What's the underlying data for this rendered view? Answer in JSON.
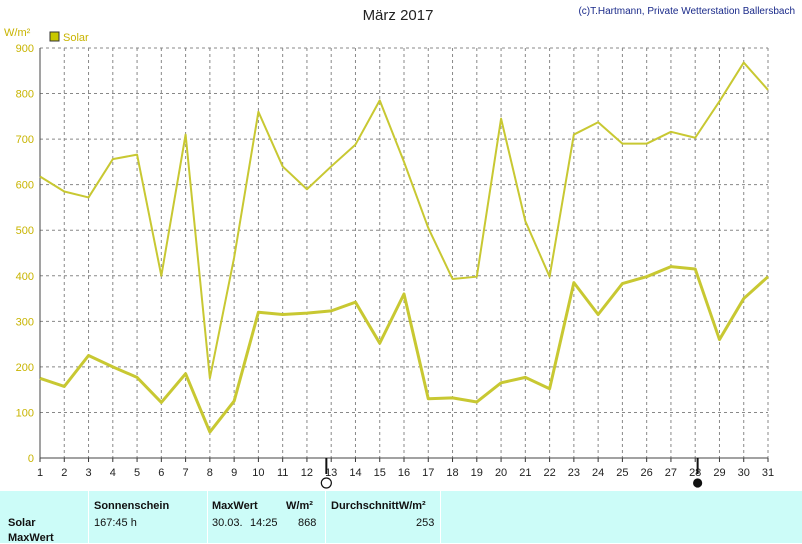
{
  "header": {
    "title": "März 2017",
    "credit": "(c)T.Hartmann, Private Wetterstation Ballersbach",
    "unit": "W/m²"
  },
  "legend": {
    "label": "Solar",
    "color": "#c8c800"
  },
  "colors": {
    "line": "#c8c832",
    "grid": "#888888",
    "panel": "#ccfcf8",
    "credit": "#1a2a8a",
    "ytick": "#c8b400"
  },
  "chart_data": {
    "type": "line",
    "title": "März 2017",
    "xlabel": "",
    "ylabel": "W/m²",
    "x": [
      1,
      2,
      3,
      4,
      5,
      6,
      7,
      8,
      9,
      10,
      11,
      12,
      13,
      14,
      15,
      16,
      17,
      18,
      19,
      20,
      21,
      22,
      23,
      24,
      25,
      26,
      27,
      28,
      29,
      30,
      31
    ],
    "xlim": [
      1,
      31
    ],
    "ylim": [
      0,
      900
    ],
    "yticks": [
      0,
      100,
      200,
      300,
      400,
      500,
      600,
      700,
      800,
      900
    ],
    "grid": true,
    "legend_position": "top-left",
    "series": [
      {
        "name": "Solar",
        "values": [
          618,
          585,
          572,
          656,
          666,
          400,
          710,
          175,
          440,
          760,
          640,
          590,
          640,
          688,
          785,
          650,
          505,
          393,
          398,
          745,
          520,
          398,
          710,
          737,
          690,
          690,
          716,
          703,
          783,
          868,
          808
        ]
      },
      {
        "name": "",
        "values": [
          175,
          157,
          225,
          200,
          177,
          122,
          185,
          57,
          125,
          320,
          315,
          318,
          323,
          342,
          252,
          360,
          130,
          132,
          123,
          165,
          177,
          152,
          385,
          315,
          383,
          398,
          420,
          415,
          260,
          350,
          398
        ]
      }
    ],
    "markers": [
      {
        "type": "full-moon",
        "x": 12.8
      },
      {
        "type": "new-moon",
        "x": 28.1
      }
    ]
  },
  "table": {
    "row_label": "Solar",
    "row_label2": "MaxWert",
    "sonnenschein_header": "Sonnenschein",
    "sonnenschein_value": "167:45 h",
    "maxwert_header": "MaxWert",
    "maxwert_unit": "W/m²",
    "maxwert_date": "30.03.",
    "maxwert_time": "14:25",
    "maxwert_value": "868",
    "durchschnitt_header": "DurchschnittW/m²",
    "durchschnitt_value": "253"
  }
}
